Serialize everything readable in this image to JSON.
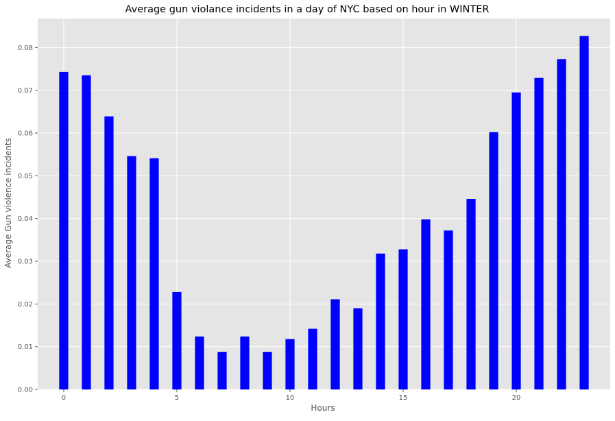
{
  "chart_data": {
    "type": "bar",
    "title": "Average gun violance incidents in a day of NYC based on hour in WINTER",
    "xlabel": "Hours",
    "ylabel": "Average Gun violence incidents",
    "x": [
      0,
      1,
      2,
      3,
      4,
      5,
      6,
      7,
      8,
      9,
      10,
      11,
      12,
      13,
      14,
      15,
      16,
      17,
      18,
      19,
      20,
      21,
      22,
      23
    ],
    "values": [
      0.0743,
      0.0735,
      0.0639,
      0.0546,
      0.0541,
      0.0228,
      0.0124,
      0.0088,
      0.0124,
      0.0088,
      0.0118,
      0.0142,
      0.0211,
      0.019,
      0.0318,
      0.0328,
      0.0398,
      0.0372,
      0.0446,
      0.0602,
      0.0695,
      0.0729,
      0.0773,
      0.0827
    ],
    "xlim": [
      -1.15,
      24.15
    ],
    "ylim": [
      0,
      0.0868
    ],
    "x_ticks": [
      0,
      5,
      10,
      15,
      20
    ],
    "x_tick_labels": [
      "0",
      "5",
      "10",
      "15",
      "20"
    ],
    "y_ticks": [
      0,
      0.01,
      0.02,
      0.03,
      0.04,
      0.05,
      0.06,
      0.07,
      0.08
    ],
    "y_tick_labels": [
      "0.00",
      "0.01",
      "0.02",
      "0.03",
      "0.04",
      "0.05",
      "0.06",
      "0.07",
      "0.08"
    ],
    "grid": true,
    "bar_color": "#0000ff",
    "background_color": "#e5e5e5",
    "grid_color": "#ffffff"
  }
}
